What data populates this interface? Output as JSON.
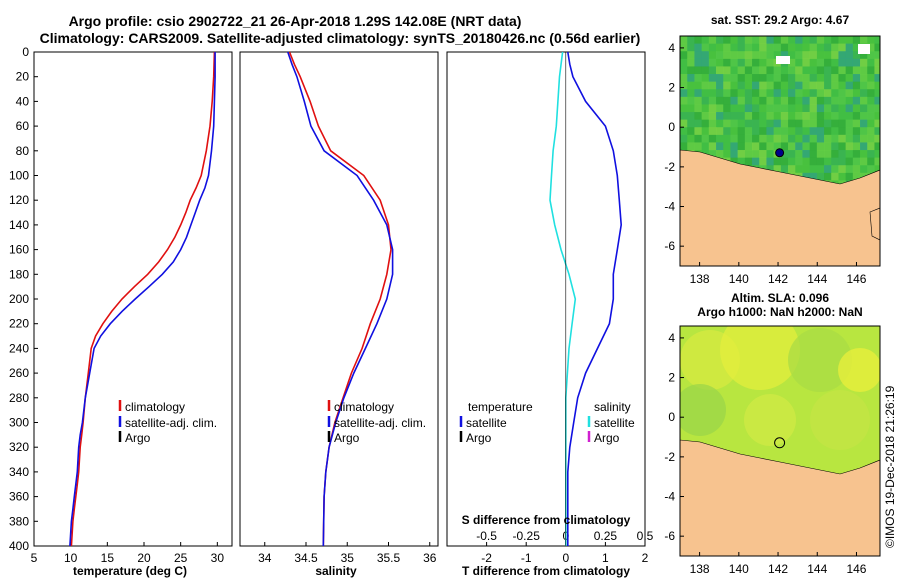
{
  "title_line1": "Argo profile: csio 2902722_21 26-Apr-2018 1.29S 142.08E (NRT data)",
  "title_line2": "Climatology: CARS2009. Satellite-adjusted climatology: synTS_20180426.nc (0.56d earlier)",
  "colors": {
    "climatology": "#e01010",
    "satellite": "#1010e0",
    "argo": "#000000",
    "salinity_satellite": "#20e0e0",
    "salinity_argo": "#d020d0",
    "land": "#f7c38f",
    "sst_base": "#3cb83c",
    "sla_base": "#b8e640"
  },
  "legend": {
    "climatology": "climatology",
    "satellite_adj": "satellite-adj. clim.",
    "argo": "Argo",
    "temperature": "temperature",
    "salinity": "salinity",
    "satellite": "satellite"
  },
  "chart_data": [
    {
      "type": "line",
      "name": "temperature-profile",
      "xlabel": "temperature (deg C)",
      "ylabel": "",
      "xlim": [
        5,
        32
      ],
      "ylim": [
        400,
        0
      ],
      "xticks": [
        "5",
        "10",
        "15",
        "20",
        "25",
        "30"
      ],
      "yticks": [
        "0",
        "20",
        "40",
        "60",
        "80",
        "100",
        "120",
        "140",
        "160",
        "180",
        "200",
        "220",
        "240",
        "260",
        "280",
        "300",
        "320",
        "340",
        "360",
        "380",
        "400"
      ],
      "series": [
        {
          "name": "climatology",
          "color": "#e01010",
          "x": [
            29.6,
            29.5,
            29.3,
            29.0,
            28.5,
            27.8,
            27.1,
            26.3,
            25.7,
            25.0,
            24.2,
            23.2,
            22.0,
            20.5,
            18.7,
            17.0,
            15.6,
            14.4,
            13.4,
            12.8,
            12.4,
            12.0,
            11.7,
            11.5,
            11.3,
            11.1,
            10.9,
            10.7,
            10.5,
            10.3,
            10.1
          ],
          "y": [
            0,
            20,
            40,
            60,
            80,
            100,
            110,
            120,
            130,
            140,
            150,
            160,
            170,
            180,
            190,
            200,
            210,
            220,
            230,
            240,
            260,
            280,
            300,
            310,
            320,
            340,
            350,
            360,
            370,
            380,
            400
          ]
        },
        {
          "name": "satellite-adj. clim.",
          "color": "#1010e0",
          "x": [
            29.7,
            29.7,
            29.6,
            29.5,
            29.2,
            28.8,
            28.3,
            27.6,
            27.0,
            26.4,
            25.8,
            25.0,
            24.0,
            22.5,
            20.7,
            18.8,
            17.0,
            15.4,
            14.1,
            13.2,
            12.6,
            12.0,
            11.6,
            11.3,
            11.1,
            10.9,
            10.7,
            10.5,
            10.3,
            10.1,
            9.9
          ],
          "y": [
            0,
            20,
            40,
            60,
            80,
            100,
            110,
            120,
            130,
            140,
            150,
            160,
            170,
            180,
            190,
            200,
            210,
            220,
            230,
            240,
            260,
            280,
            300,
            310,
            320,
            340,
            350,
            360,
            370,
            380,
            400
          ]
        }
      ]
    },
    {
      "type": "line",
      "name": "salinity-profile",
      "xlabel": "salinity",
      "xlim": [
        33.7,
        36.1
      ],
      "ylim": [
        400,
        0
      ],
      "xticks": [
        "34",
        "34.5",
        "35",
        "35.5",
        "36"
      ],
      "series": [
        {
          "name": "climatology",
          "color": "#e01010",
          "x": [
            34.3,
            34.36,
            34.43,
            34.55,
            34.65,
            34.8,
            35.2,
            35.4,
            35.5,
            35.53,
            35.48,
            35.4,
            35.28,
            35.18,
            35.05,
            34.95,
            34.85,
            34.78,
            34.74,
            34.72,
            34.71
          ],
          "y": [
            0,
            10,
            20,
            40,
            60,
            80,
            100,
            120,
            140,
            160,
            180,
            200,
            220,
            240,
            260,
            280,
            300,
            320,
            340,
            360,
            400
          ]
        },
        {
          "name": "satellite-adj. clim.",
          "color": "#1010e0",
          "x": [
            34.28,
            34.33,
            34.39,
            34.48,
            34.56,
            34.72,
            35.12,
            35.32,
            35.48,
            35.55,
            35.55,
            35.48,
            35.36,
            35.22,
            35.08,
            34.96,
            34.86,
            34.78,
            34.74,
            34.72,
            34.71
          ],
          "y": [
            0,
            10,
            20,
            40,
            60,
            80,
            100,
            120,
            140,
            160,
            180,
            200,
            220,
            240,
            260,
            280,
            300,
            320,
            340,
            360,
            400
          ]
        }
      ]
    },
    {
      "type": "line",
      "name": "difference-profile",
      "xlabel": "T difference from climatology",
      "x2label": "S difference from climatology",
      "xlim": [
        -3.0,
        2.0
      ],
      "ylim": [
        400,
        0
      ],
      "xticks": [
        "-2",
        "-1",
        "0",
        "1",
        "2"
      ],
      "x2ticks": [
        "-0.5",
        "-0.25",
        "0",
        "0.25",
        "0.5"
      ],
      "series": [
        {
          "name": "temperature satellite",
          "color": "#1010e0",
          "x": [
            0.05,
            0.1,
            0.18,
            0.5,
            1.0,
            1.2,
            1.3,
            1.35,
            1.4,
            1.3,
            1.2,
            1.2,
            1.1,
            0.8,
            0.5,
            0.3,
            0.2,
            0.1,
            0.05,
            0.05,
            0.05
          ],
          "y": [
            0,
            10,
            20,
            40,
            60,
            80,
            100,
            120,
            140,
            160,
            180,
            200,
            220,
            240,
            260,
            280,
            300,
            320,
            340,
            360,
            400
          ]
        },
        {
          "name": "salinity satellite",
          "color": "#20e0e0",
          "x": [
            -0.02,
            -0.04,
            -0.05,
            -0.06,
            -0.08,
            -0.09,
            -0.1,
            -0.07,
            -0.03,
            0.02,
            0.06,
            0.04,
            0.02,
            0.01,
            0.0,
            0.0,
            0.0,
            0.0,
            0.0
          ],
          "y": [
            0,
            20,
            40,
            60,
            80,
            100,
            120,
            140,
            160,
            180,
            200,
            220,
            240,
            260,
            280,
            300,
            320,
            340,
            400
          ]
        }
      ]
    },
    {
      "type": "heatmap",
      "name": "sst-map",
      "title": "sat. SST: 29.2 Argo: 4.67",
      "xlim": [
        137,
        147.2
      ],
      "ylim": [
        -7,
        4.6
      ],
      "xticks": [
        "138",
        "140",
        "142",
        "144",
        "146"
      ],
      "yticks": [
        "4",
        "2",
        "0",
        "-2",
        "-4",
        "-6"
      ],
      "argo_position": [
        142.08,
        -1.29
      ]
    },
    {
      "type": "heatmap",
      "name": "sla-map",
      "title_line1": "Altim. SLA: 0.096",
      "title_line2": "Argo h1000: NaN h2000: NaN",
      "xlim": [
        137,
        147.2
      ],
      "ylim": [
        -7,
        4.6
      ],
      "xticks": [
        "138",
        "140",
        "142",
        "144",
        "146"
      ],
      "yticks": [
        "4",
        "2",
        "0",
        "-2",
        "-4",
        "-6"
      ],
      "argo_position": [
        142.08,
        -1.29
      ]
    }
  ],
  "timestamp": "©IMOS 19-Dec-2018 21:26:19"
}
